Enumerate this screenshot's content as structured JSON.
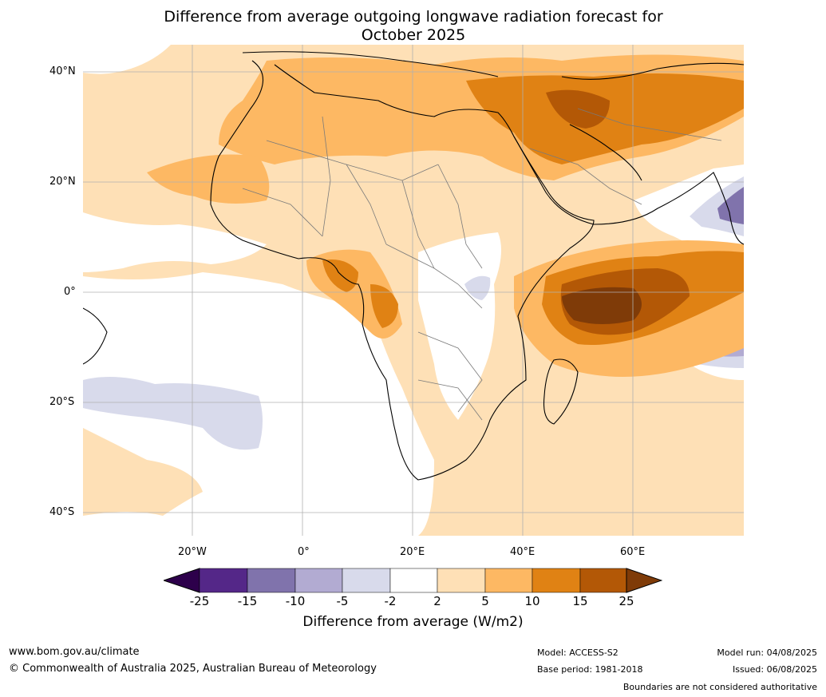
{
  "title_line1": "Difference from average outgoing longwave radiation forecast for",
  "title_line2": "October 2025",
  "lat_labels": [
    "40°N",
    "20°N",
    "0°",
    "20°S",
    "40°S"
  ],
  "lon_labels": [
    "20°W",
    "0°",
    "20°E",
    "40°E",
    "60°E"
  ],
  "colorbar": {
    "ticks": [
      "-25",
      "-15",
      "-10",
      "-5",
      "-2",
      "2",
      "5",
      "10",
      "15",
      "25"
    ],
    "colors": [
      "#2d004b",
      "#542788",
      "#8073ac",
      "#b2abd2",
      "#d8daeb",
      "#ffffff",
      "#fee0b6",
      "#fdb863",
      "#e08214",
      "#b35806",
      "#7f3b08"
    ],
    "title": "Difference from average (W/m2)"
  },
  "footer": {
    "url": "www.bom.gov.au/climate",
    "copyright": "© Commonwealth of Australia 2025, Australian Bureau of Meteorology",
    "model": "Model: ACCESS-S2",
    "base_period": "Base period: 1981-2018",
    "model_run": "Model run: 04/08/2025",
    "issued": "Issued: 06/08/2025",
    "disclaimer": "Boundaries are not considered authoritative"
  }
}
